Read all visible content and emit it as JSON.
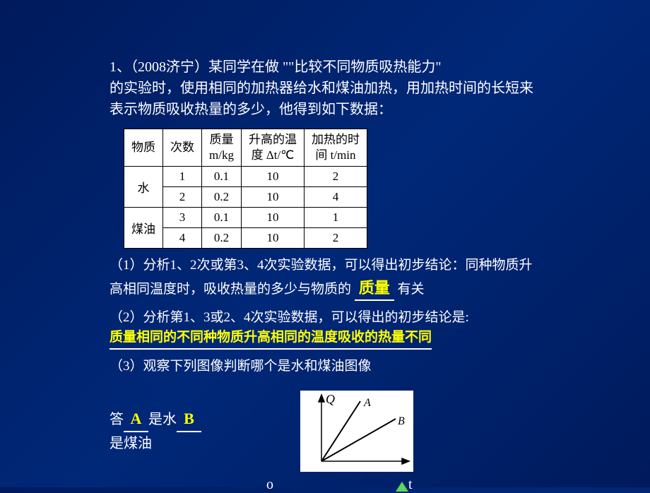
{
  "background_color": "#001a5c",
  "text_color": "#ffffff",
  "highlight_color": "#ffff00",
  "problem": {
    "line1": "1、（2008济宁）某同学在做 \"\"比较不同物质吸热能力\"",
    "line2": "的实验时，使用相同的加热器给水和煤油加热，用加热时间的长短来表示物质吸收热量的多少，他得到如下数据："
  },
  "table": {
    "headers": [
      "物质",
      "次数",
      "质量\nm/kg",
      "升高的温\n度 Δt/℃",
      "加热的时\n间 t/min"
    ],
    "groups": [
      {
        "material": "水",
        "rows": [
          [
            1,
            "0.1",
            10,
            2
          ],
          [
            2,
            "0.2",
            10,
            4
          ]
        ]
      },
      {
        "material": "煤油",
        "rows": [
          [
            3,
            "0.1",
            10,
            1
          ],
          [
            4,
            "0.2",
            10,
            2
          ]
        ]
      }
    ],
    "bg_color": "#ffffff",
    "border_color": "#000000"
  },
  "q1": {
    "text": "（1）分析1、2次或第3、4次实验数据，可以得出初步结论：同种物质升高相同温度时，吸收热量的多少与物质的",
    "answer": "质量",
    "suffix": "有关"
  },
  "q2": {
    "text": "（2）分析第1、3或2、4次实验数据，可以得出的初步结论是:",
    "answer": "质量相同的不同种物质升高相同的温度吸收的热量不同"
  },
  "q3": {
    "text": "（3）观察下列图像判断哪个是水和煤油图像"
  },
  "bottom": {
    "prefix": "答",
    "a1": "A",
    "mid": "是水",
    "a2": "B",
    "suffix": "是煤油"
  },
  "graph": {
    "y_label": "Q",
    "x_label": "t",
    "origin_label": "o",
    "line_a_label": "A",
    "line_b_label": "B",
    "bg": "#ffffff",
    "line_color": "#000000",
    "lines": {
      "axisY": [
        30,
        100,
        30,
        10
      ],
      "axisX": [
        30,
        100,
        150,
        100
      ],
      "A": [
        30,
        100,
        85,
        15
      ],
      "B": [
        30,
        100,
        135,
        40
      ]
    }
  }
}
